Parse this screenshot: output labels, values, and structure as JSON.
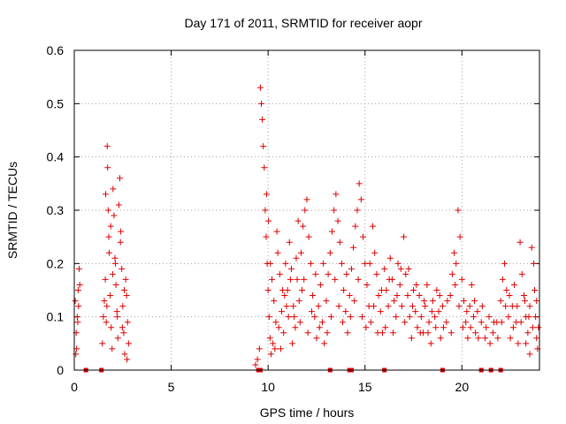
{
  "chart_data": {
    "type": "scatter",
    "title": "Day 171 of 2011, SRMTID for receiver aopr",
    "xlabel": "GPS time / hours",
    "ylabel": "SRMTID / TECUs",
    "xlim": [
      0,
      24
    ],
    "ylim": [
      0,
      0.6
    ],
    "xticks": [
      0,
      5,
      10,
      15,
      20
    ],
    "yticks": [
      0,
      0.1,
      0.2,
      0.3,
      0.4,
      0.5,
      0.6
    ],
    "xtick_labels": [
      "0",
      "5",
      "10",
      "15",
      "20"
    ],
    "ytick_labels": [
      "0",
      "0.1",
      "0.2",
      "0.3",
      "0.4",
      "0.5",
      "0.6"
    ],
    "grid": true,
    "marker": "plus",
    "color": "#e00000",
    "series": [
      {
        "name": "SRMTID",
        "points": [
          [
            0.05,
            0.13
          ],
          [
            0.1,
            0.07
          ],
          [
            0.12,
            0.04
          ],
          [
            0.15,
            0.1
          ],
          [
            0.2,
            0.15
          ],
          [
            0.25,
            0.19
          ],
          [
            0.08,
            0.03
          ],
          [
            0.18,
            0.09
          ],
          [
            0.22,
            0.12
          ],
          [
            0.28,
            0.16
          ],
          [
            1.45,
            0.05
          ],
          [
            1.5,
            0.1
          ],
          [
            1.55,
            0.13
          ],
          [
            1.6,
            0.17
          ],
          [
            1.65,
            0.09
          ],
          [
            1.7,
            0.42
          ],
          [
            1.72,
            0.38
          ],
          [
            1.75,
            0.3
          ],
          [
            1.78,
            0.25
          ],
          [
            1.8,
            0.22
          ],
          [
            1.85,
            0.14
          ],
          [
            1.9,
            0.08
          ],
          [
            1.95,
            0.04
          ],
          [
            2.0,
            0.34
          ],
          [
            2.05,
            0.29
          ],
          [
            2.1,
            0.21
          ],
          [
            2.15,
            0.16
          ],
          [
            2.2,
            0.11
          ],
          [
            2.25,
            0.06
          ],
          [
            2.3,
            0.31
          ],
          [
            2.35,
            0.36
          ],
          [
            2.4,
            0.26
          ],
          [
            2.45,
            0.19
          ],
          [
            2.5,
            0.12
          ],
          [
            2.55,
            0.07
          ],
          [
            2.6,
            0.03
          ],
          [
            2.65,
            0.17
          ],
          [
            2.7,
            0.14
          ],
          [
            2.75,
            0.09
          ],
          [
            2.8,
            0.05
          ],
          [
            1.62,
            0.33
          ],
          [
            1.88,
            0.27
          ],
          [
            2.12,
            0.2
          ],
          [
            2.38,
            0.24
          ],
          [
            2.58,
            0.15
          ],
          [
            1.68,
            0.12
          ],
          [
            1.98,
            0.18
          ],
          [
            2.22,
            0.1
          ],
          [
            2.48,
            0.08
          ],
          [
            2.72,
            0.02
          ],
          [
            9.35,
            0.01
          ],
          [
            9.45,
            0.02
          ],
          [
            9.55,
            0.04
          ],
          [
            9.6,
            0.53
          ],
          [
            9.65,
            0.5
          ],
          [
            9.7,
            0.47
          ],
          [
            9.75,
            0.42
          ],
          [
            9.8,
            0.38
          ],
          [
            9.85,
            0.3
          ],
          [
            9.9,
            0.25
          ],
          [
            9.95,
            0.2
          ],
          [
            10.0,
            0.15
          ],
          [
            10.05,
            0.1
          ],
          [
            10.1,
            0.06
          ],
          [
            10.15,
            0.03
          ],
          [
            10.2,
            0.17
          ],
          [
            10.3,
            0.13
          ],
          [
            10.4,
            0.09
          ],
          [
            10.5,
            0.22
          ],
          [
            10.6,
            0.18
          ],
          [
            10.7,
            0.11
          ],
          [
            10.8,
            0.07
          ],
          [
            10.9,
            0.2
          ],
          [
            11.0,
            0.15
          ],
          [
            11.1,
            0.24
          ],
          [
            11.2,
            0.19
          ],
          [
            11.3,
            0.12
          ],
          [
            11.4,
            0.08
          ],
          [
            11.5,
            0.17
          ],
          [
            11.6,
            0.13
          ],
          [
            11.7,
            0.22
          ],
          [
            11.8,
            0.27
          ],
          [
            11.9,
            0.3
          ],
          [
            12.0,
            0.32
          ],
          [
            12.1,
            0.25
          ],
          [
            12.2,
            0.2
          ],
          [
            12.3,
            0.14
          ],
          [
            12.4,
            0.1
          ],
          [
            12.5,
            0.06
          ],
          [
            12.6,
            0.12
          ],
          [
            12.7,
            0.16
          ],
          [
            12.8,
            0.09
          ],
          [
            12.9,
            0.05
          ],
          [
            13.0,
            0.13
          ],
          [
            13.1,
            0.18
          ],
          [
            13.2,
            0.22
          ],
          [
            13.3,
            0.26
          ],
          [
            13.4,
            0.3
          ],
          [
            13.5,
            0.33
          ],
          [
            13.6,
            0.28
          ],
          [
            13.7,
            0.24
          ],
          [
            13.8,
            0.2
          ],
          [
            13.9,
            0.15
          ],
          [
            14.0,
            0.11
          ],
          [
            14.1,
            0.07
          ],
          [
            14.2,
            0.14
          ],
          [
            14.3,
            0.19
          ],
          [
            14.4,
            0.23
          ],
          [
            14.5,
            0.27
          ],
          [
            14.6,
            0.3
          ],
          [
            14.7,
            0.35
          ],
          [
            14.8,
            0.32
          ],
          [
            14.9,
            0.25
          ],
          [
            15.0,
            0.2
          ],
          [
            15.1,
            0.16
          ],
          [
            15.2,
            0.12
          ],
          [
            15.3,
            0.09
          ],
          [
            15.4,
            0.27
          ],
          [
            15.5,
            0.22
          ],
          [
            15.6,
            0.18
          ],
          [
            15.7,
            0.14
          ],
          [
            15.8,
            0.11
          ],
          [
            15.9,
            0.07
          ],
          [
            16.0,
            0.19
          ],
          [
            16.1,
            0.15
          ],
          [
            16.2,
            0.12
          ],
          [
            16.3,
            0.21
          ],
          [
            16.4,
            0.17
          ],
          [
            16.5,
            0.13
          ],
          [
            16.6,
            0.1
          ],
          [
            16.7,
            0.2
          ],
          [
            16.8,
            0.16
          ],
          [
            16.9,
            0.12
          ],
          [
            17.0,
            0.25
          ],
          [
            17.1,
            0.18
          ],
          [
            17.2,
            0.14
          ],
          [
            17.3,
            0.1
          ],
          [
            17.4,
            0.06
          ],
          [
            17.5,
            0.15
          ],
          [
            17.6,
            0.11
          ],
          [
            17.7,
            0.08
          ],
          [
            17.8,
            0.14
          ],
          [
            17.9,
            0.1
          ],
          [
            18.0,
            0.07
          ],
          [
            18.1,
            0.12
          ],
          [
            18.2,
            0.16
          ],
          [
            18.3,
            0.09
          ],
          [
            18.4,
            0.05
          ],
          [
            18.5,
            0.13
          ],
          [
            18.6,
            0.1
          ],
          [
            18.7,
            0.15
          ],
          [
            18.8,
            0.11
          ],
          [
            18.9,
            0.06
          ],
          [
            19.0,
            0.12
          ],
          [
            19.2,
            0.09
          ],
          [
            19.4,
            0.14
          ],
          [
            19.5,
            0.18
          ],
          [
            19.6,
            0.22
          ],
          [
            19.7,
            0.2
          ],
          [
            19.8,
            0.3
          ],
          [
            19.9,
            0.25
          ],
          [
            20.0,
            0.17
          ],
          [
            20.1,
            0.13
          ],
          [
            20.2,
            0.09
          ],
          [
            20.3,
            0.06
          ],
          [
            20.4,
            0.12
          ],
          [
            20.5,
            0.16
          ],
          [
            20.6,
            0.1
          ],
          [
            20.7,
            0.07
          ],
          [
            20.8,
            0.11
          ],
          [
            21.0,
            0.09
          ],
          [
            21.2,
            0.06
          ],
          [
            21.4,
            0.1
          ],
          [
            21.6,
            0.07
          ],
          [
            21.8,
            0.09
          ],
          [
            22.0,
            0.13
          ],
          [
            22.1,
            0.17
          ],
          [
            22.2,
            0.2
          ],
          [
            22.3,
            0.15
          ],
          [
            22.4,
            0.1
          ],
          [
            22.5,
            0.06
          ],
          [
            22.6,
            0.12
          ],
          [
            22.7,
            0.16
          ],
          [
            22.8,
            0.09
          ],
          [
            22.9,
            0.05
          ],
          [
            23.0,
            0.24
          ],
          [
            23.1,
            0.18
          ],
          [
            23.2,
            0.14
          ],
          [
            23.3,
            0.1
          ],
          [
            23.4,
            0.07
          ],
          [
            23.5,
            0.12
          ],
          [
            23.6,
            0.23
          ],
          [
            23.7,
            0.2
          ],
          [
            23.75,
            0.15
          ],
          [
            23.8,
            0.1
          ],
          [
            23.85,
            0.06
          ],
          [
            23.9,
            0.04
          ],
          [
            23.95,
            0.08
          ],
          [
            23.5,
            0.03
          ],
          [
            23.3,
            0.05
          ],
          [
            10.25,
            0.05
          ],
          [
            10.45,
            0.26
          ],
          [
            10.65,
            0.04
          ],
          [
            10.85,
            0.14
          ],
          [
            11.05,
            0.1
          ],
          [
            11.25,
            0.05
          ],
          [
            11.45,
            0.21
          ],
          [
            11.65,
            0.09
          ],
          [
            11.85,
            0.17
          ],
          [
            12.05,
            0.07
          ],
          [
            12.25,
            0.11
          ],
          [
            12.45,
            0.18
          ],
          [
            12.65,
            0.08
          ],
          [
            12.85,
            0.2
          ],
          [
            13.05,
            0.07
          ],
          [
            13.25,
            0.1
          ],
          [
            13.45,
            0.17
          ],
          [
            13.65,
            0.12
          ],
          [
            13.85,
            0.09
          ],
          [
            14.05,
            0.18
          ],
          [
            14.25,
            0.1
          ],
          [
            14.45,
            0.13
          ],
          [
            14.65,
            0.17
          ],
          [
            14.85,
            0.1
          ],
          [
            15.05,
            0.08
          ],
          [
            15.25,
            0.2
          ],
          [
            15.45,
            0.12
          ],
          [
            15.65,
            0.07
          ],
          [
            15.85,
            0.15
          ],
          [
            16.05,
            0.08
          ],
          [
            16.25,
            0.17
          ],
          [
            16.45,
            0.07
          ],
          [
            16.65,
            0.14
          ],
          [
            16.85,
            0.19
          ],
          [
            17.05,
            0.09
          ],
          [
            17.25,
            0.19
          ],
          [
            17.45,
            0.12
          ],
          [
            17.65,
            0.16
          ],
          [
            17.85,
            0.07
          ],
          [
            18.05,
            0.13
          ],
          [
            18.25,
            0.07
          ],
          [
            18.45,
            0.11
          ],
          [
            18.65,
            0.08
          ],
          [
            18.85,
            0.14
          ],
          [
            19.05,
            0.08
          ],
          [
            19.25,
            0.13
          ],
          [
            19.45,
            0.07
          ],
          [
            19.65,
            0.16
          ],
          [
            19.85,
            0.12
          ],
          [
            20.05,
            0.08
          ],
          [
            20.25,
            0.11
          ],
          [
            20.45,
            0.08
          ],
          [
            20.65,
            0.13
          ],
          [
            20.85,
            0.06
          ],
          [
            21.05,
            0.12
          ],
          [
            21.25,
            0.08
          ],
          [
            21.45,
            0.05
          ],
          [
            21.65,
            0.09
          ],
          [
            21.85,
            0.06
          ],
          [
            22.05,
            0.09
          ],
          [
            22.25,
            0.12
          ],
          [
            22.45,
            0.14
          ],
          [
            22.65,
            0.08
          ],
          [
            22.85,
            0.12
          ],
          [
            23.05,
            0.09
          ],
          [
            23.25,
            0.13
          ],
          [
            23.45,
            0.1
          ],
          [
            23.65,
            0.08
          ],
          [
            23.85,
            0.13
          ],
          [
            9.92,
            0.33
          ],
          [
            10.02,
            0.28
          ],
          [
            10.12,
            0.2
          ],
          [
            10.35,
            0.04
          ],
          [
            10.55,
            0.08
          ],
          [
            10.75,
            0.15
          ],
          [
            10.95,
            0.12
          ],
          [
            11.15,
            0.17
          ],
          [
            11.35,
            0.1
          ],
          [
            11.55,
            0.28
          ],
          [
            11.75,
            0.15
          ]
        ]
      }
    ],
    "zero_markers_x": [
      0.6,
      1.4,
      9.5,
      9.6,
      13.2,
      14.2,
      14.3,
      16.0,
      19.0,
      21.0,
      21.5,
      22.0
    ]
  }
}
